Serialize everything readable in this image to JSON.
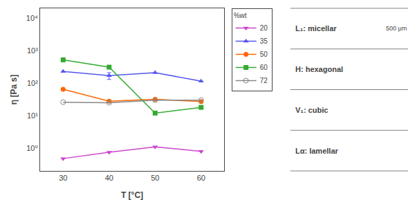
{
  "chart_data": {
    "type": "line",
    "xlabel": "T [°C]",
    "ylabel": "η [Pa s]",
    "x": [
      30,
      40,
      50,
      60
    ],
    "series": [
      {
        "name": "20",
        "color": "#cc44cc",
        "marker": "triangle-down",
        "values": [
          0.48,
          0.75,
          1.1,
          0.8
        ]
      },
      {
        "name": "35",
        "color": "#5555ee",
        "marker": "triangle-up",
        "values": [
          230,
          170,
          210,
          115
        ],
        "errors": [
          null,
          40,
          null,
          null
        ]
      },
      {
        "name": "50",
        "color": "#ff6600",
        "marker": "circle",
        "values": [
          65,
          28,
          32,
          27
        ]
      },
      {
        "name": "60",
        "color": "#33aa33",
        "marker": "square",
        "values": [
          520,
          310,
          12,
          18
        ],
        "errors": [
          50,
          null,
          null,
          null
        ]
      },
      {
        "name": "72",
        "color": "#888888",
        "marker": "circle-open",
        "values": [
          26,
          25,
          30,
          30
        ]
      }
    ],
    "legend_title": "%wt",
    "legend": "upper right",
    "log": "y",
    "grid": false,
    "xlim": [
      25,
      65
    ],
    "ylim": [
      0.2,
      20000
    ],
    "xticks": [
      30,
      40,
      50,
      60
    ],
    "yticks": [
      {
        "value": 1,
        "label": "10⁰"
      },
      {
        "value": 10,
        "label": "10¹"
      },
      {
        "value": 100,
        "label": "10²"
      },
      {
        "value": 1000,
        "label": "10³"
      },
      {
        "value": 10000,
        "label": "10⁴"
      }
    ],
    "annotations": [
      "L₁: micellar",
      "H: hexagonal",
      "V₁: cubic",
      "Lα: lamellar",
      "500 μm"
    ]
  }
}
